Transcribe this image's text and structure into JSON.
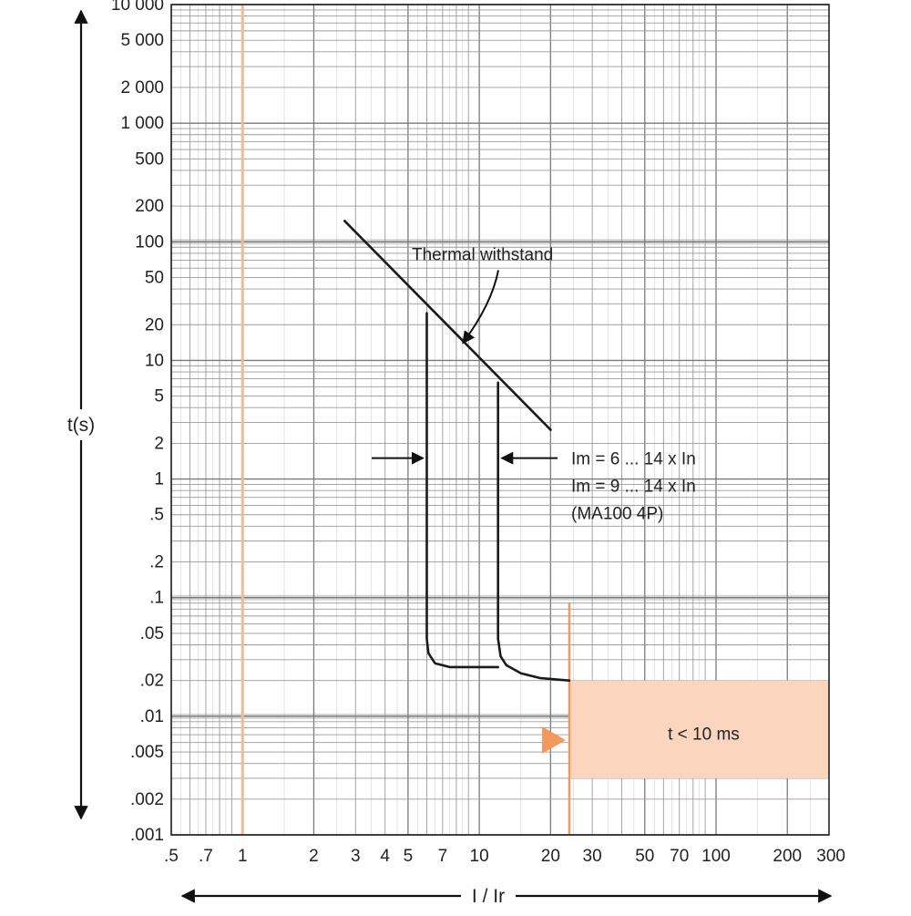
{
  "chart_data": {
    "type": "line",
    "xscale": "log",
    "yscale": "log",
    "xlim": [
      0.5,
      300
    ],
    "ylim": [
      0.001,
      10000
    ],
    "xlabel": "I / Ir",
    "ylabel": "t(s)",
    "xticks": [
      {
        "v": 0.5,
        "label": ".5"
      },
      {
        "v": 0.7,
        "label": ".7"
      },
      {
        "v": 1,
        "label": "1"
      },
      {
        "v": 2,
        "label": "2"
      },
      {
        "v": 3,
        "label": "3"
      },
      {
        "v": 4,
        "label": "4"
      },
      {
        "v": 5,
        "label": "5"
      },
      {
        "v": 7,
        "label": "7"
      },
      {
        "v": 10,
        "label": "10"
      },
      {
        "v": 20,
        "label": "20"
      },
      {
        "v": 30,
        "label": "30"
      },
      {
        "v": 50,
        "label": "50"
      },
      {
        "v": 70,
        "label": "70"
      },
      {
        "v": 100,
        "label": "100"
      },
      {
        "v": 200,
        "label": "200"
      },
      {
        "v": 300,
        "label": "300"
      }
    ],
    "yticks": [
      {
        "v": 10000,
        "label": "10 000"
      },
      {
        "v": 5000,
        "label": "5 000"
      },
      {
        "v": 2000,
        "label": "2 000"
      },
      {
        "v": 1000,
        "label": "1 000"
      },
      {
        "v": 500,
        "label": "500"
      },
      {
        "v": 200,
        "label": "200"
      },
      {
        "v": 100,
        "label": "100"
      },
      {
        "v": 50,
        "label": "50"
      },
      {
        "v": 20,
        "label": "20"
      },
      {
        "v": 10,
        "label": "10"
      },
      {
        "v": 5,
        "label": "5"
      },
      {
        "v": 2,
        "label": "2"
      },
      {
        "v": 1,
        "label": "1"
      },
      {
        "v": 0.5,
        "label": ".5"
      },
      {
        "v": 0.2,
        "label": ".2"
      },
      {
        "v": 0.1,
        "label": ".1"
      },
      {
        "v": 0.05,
        "label": ".05"
      },
      {
        "v": 0.02,
        "label": ".02"
      },
      {
        "v": 0.01,
        "label": ".01"
      },
      {
        "v": 0.005,
        "label": ".005"
      },
      {
        "v": 0.002,
        "label": ".002"
      },
      {
        "v": 0.001,
        "label": ".001"
      }
    ],
    "grid": true,
    "series": [
      {
        "name": "Thermal withstand",
        "points": [
          [
            2.7,
            150
          ],
          [
            20,
            2.6
          ]
        ]
      },
      {
        "points": [
          [
            6,
            25
          ],
          [
            6,
            0.1
          ],
          [
            6,
            0.045
          ],
          [
            6.1,
            0.034
          ],
          [
            6.5,
            0.028
          ],
          [
            7.5,
            0.026
          ],
          [
            10,
            0.026
          ],
          [
            12,
            0.026
          ]
        ]
      },
      {
        "points": [
          [
            12,
            6.5
          ],
          [
            12,
            0.1
          ],
          [
            12,
            0.045
          ],
          [
            12.3,
            0.032
          ],
          [
            13,
            0.027
          ],
          [
            15,
            0.023
          ],
          [
            18,
            0.021
          ],
          [
            24,
            0.02
          ]
        ]
      }
    ],
    "annotations": [
      {
        "text": "Thermal withstand"
      },
      {
        "lines": [
          "Im = 6 ... 14 x In",
          "Im = 9 ... 14 x In",
          "(MA100 4P)"
        ]
      },
      {
        "text": "t <  10 ms"
      }
    ],
    "region": {
      "x": [
        24,
        300
      ],
      "y": [
        0.003,
        0.02
      ],
      "label": "t <  10 ms"
    },
    "reference_line_x": 1,
    "colors": {
      "grid": "#9a9a9a",
      "grid_major": "#7a7a7a",
      "curve": "#1a1a1a",
      "accent": "#f29a5c",
      "region_fill": "#fbd5bd",
      "ref_line": "#f4b98f",
      "band": "#d6d6d6"
    }
  }
}
